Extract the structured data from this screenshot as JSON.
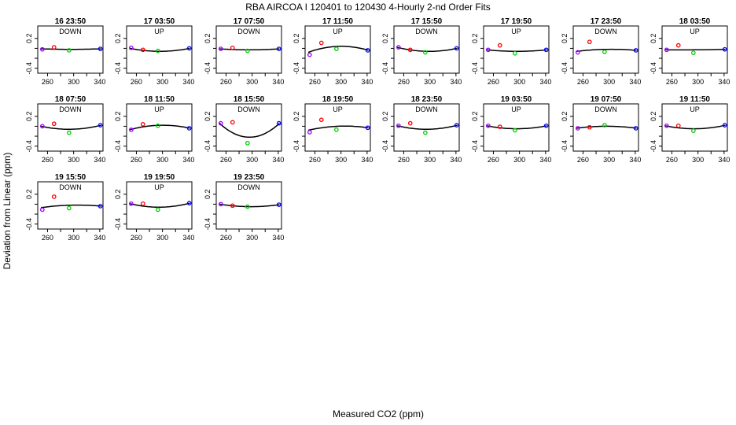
{
  "chart_data": {
    "type": "scatter",
    "title": "RBA   AIRCOA I   120401 to 120430   4-Hourly 2-nd Order Fits",
    "xlabel": "Measured CO2 (ppm)",
    "ylabel": "Deviation from Linear (ppm)",
    "xlim": [
      245,
      345
    ],
    "ylim": [
      -0.5,
      0.45
    ],
    "x_ticks": [
      260,
      300,
      340
    ],
    "y_ticks": [
      0.2,
      -0.4
    ],
    "y_tick_labels": [
      "0.2",
      "-0.4"
    ],
    "x_tick_labels": [
      "260",
      "300",
      "340"
    ],
    "point_colors": [
      "#9900ff",
      "#ff0000",
      "#00cc00",
      "#0000ff"
    ],
    "panels": [
      {
        "label": "16 23:50",
        "direction": "DOWN",
        "x": [
          252,
          270,
          293,
          341
        ],
        "y": [
          -0.02,
          0.02,
          -0.04,
          -0.01
        ],
        "fit": [
          -0.01,
          -0.02,
          -0.01
        ]
      },
      {
        "label": "17 03:50",
        "direction": "UP",
        "x": [
          252,
          270,
          293,
          341
        ],
        "y": [
          0.01,
          -0.03,
          -0.05,
          0.0
        ],
        "fit": [
          0.0,
          -0.06,
          0.0
        ]
      },
      {
        "label": "17 07:50",
        "direction": "DOWN",
        "x": [
          252,
          270,
          293,
          341
        ],
        "y": [
          -0.01,
          0.01,
          -0.05,
          -0.01
        ],
        "fit": [
          -0.01,
          -0.03,
          -0.01
        ]
      },
      {
        "label": "17 11:50",
        "direction": "UP",
        "x": [
          252,
          270,
          293,
          341
        ],
        "y": [
          -0.13,
          0.11,
          -0.01,
          -0.04
        ],
        "fit": [
          -0.08,
          0.04,
          -0.04
        ]
      },
      {
        "label": "17 15:50",
        "direction": "DOWN",
        "x": [
          252,
          270,
          293,
          341
        ],
        "y": [
          0.02,
          -0.03,
          -0.08,
          0.0
        ],
        "fit": [
          0.02,
          -0.06,
          0.0
        ]
      },
      {
        "label": "17 19:50",
        "direction": "UP",
        "x": [
          252,
          270,
          293,
          341
        ],
        "y": [
          -0.03,
          0.06,
          -0.1,
          -0.03
        ],
        "fit": [
          -0.03,
          -0.06,
          -0.03
        ]
      },
      {
        "label": "17 23:50",
        "direction": "DOWN",
        "x": [
          252,
          270,
          293,
          341
        ],
        "y": [
          -0.08,
          0.13,
          -0.07,
          -0.04
        ],
        "fit": [
          -0.06,
          -0.02,
          -0.04
        ]
      },
      {
        "label": "18 03:50",
        "direction": "UP",
        "x": [
          252,
          270,
          293,
          341
        ],
        "y": [
          -0.03,
          0.06,
          -0.09,
          -0.02
        ],
        "fit": [
          -0.03,
          -0.03,
          -0.02
        ]
      },
      {
        "label": "18 07:50",
        "direction": "DOWN",
        "x": [
          252,
          270,
          293,
          341
        ],
        "y": [
          0.0,
          0.05,
          -0.13,
          0.02
        ],
        "fit": [
          0.0,
          -0.06,
          0.02
        ]
      },
      {
        "label": "18 11:50",
        "direction": "UP",
        "x": [
          252,
          270,
          293,
          341
        ],
        "y": [
          -0.07,
          0.04,
          0.01,
          -0.04
        ],
        "fit": [
          -0.07,
          0.02,
          -0.04
        ]
      },
      {
        "label": "18 15:50",
        "direction": "DOWN",
        "x": [
          252,
          270,
          293,
          341
        ],
        "y": [
          0.06,
          0.08,
          -0.34,
          0.06
        ],
        "fit": [
          0.06,
          -0.22,
          0.06
        ]
      },
      {
        "label": "18 19:50",
        "direction": "UP",
        "x": [
          252,
          270,
          293,
          341
        ],
        "y": [
          -0.12,
          0.13,
          -0.07,
          -0.03
        ],
        "fit": [
          -0.08,
          0.0,
          -0.03
        ]
      },
      {
        "label": "18 23:50",
        "direction": "DOWN",
        "x": [
          252,
          270,
          293,
          341
        ],
        "y": [
          0.01,
          0.06,
          -0.13,
          0.02
        ],
        "fit": [
          0.01,
          -0.06,
          0.02
        ]
      },
      {
        "label": "19 03:50",
        "direction": "UP",
        "x": [
          252,
          270,
          293,
          341
        ],
        "y": [
          0.01,
          -0.01,
          -0.08,
          0.01
        ],
        "fit": [
          0.01,
          -0.05,
          0.01
        ]
      },
      {
        "label": "19 07:50",
        "direction": "DOWN",
        "x": [
          252,
          270,
          293,
          341
        ],
        "y": [
          -0.04,
          -0.02,
          0.02,
          -0.04
        ],
        "fit": [
          -0.04,
          0.0,
          -0.04
        ]
      },
      {
        "label": "19 11:50",
        "direction": "UP",
        "x": [
          252,
          270,
          293,
          341
        ],
        "y": [
          0.01,
          0.01,
          -0.09,
          0.02
        ],
        "fit": [
          0.01,
          -0.05,
          0.02
        ]
      },
      {
        "label": "19 15:50",
        "direction": "DOWN",
        "x": [
          252,
          270,
          293,
          341
        ],
        "y": [
          -0.11,
          0.15,
          -0.08,
          -0.04
        ],
        "fit": [
          -0.07,
          -0.02,
          -0.04
        ]
      },
      {
        "label": "19 19:50",
        "direction": "UP",
        "x": [
          252,
          270,
          293,
          341
        ],
        "y": [
          0.01,
          0.01,
          -0.11,
          0.02
        ],
        "fit": [
          0.01,
          -0.06,
          0.02
        ]
      },
      {
        "label": "19 23:50",
        "direction": "DOWN",
        "x": [
          252,
          270,
          293,
          341
        ],
        "y": [
          0.0,
          -0.03,
          -0.05,
          -0.01
        ],
        "fit": [
          0.0,
          -0.05,
          -0.01
        ]
      }
    ]
  }
}
